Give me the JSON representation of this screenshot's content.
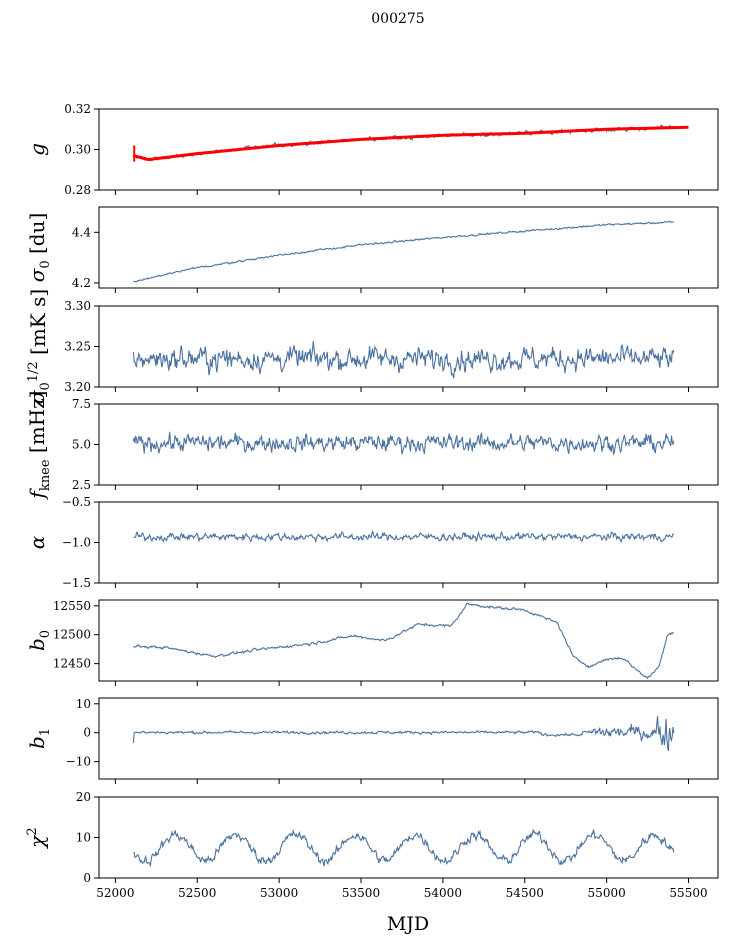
{
  "figure": {
    "title": "000275",
    "xlabel": "MJD",
    "xlim": [
      51900,
      55680
    ],
    "xticks": [
      52000,
      52500,
      53000,
      53500,
      54000,
      54500,
      55000,
      55500
    ],
    "x_start": 52110,
    "x_end": 55410,
    "colors": {
      "series": "#4c72a0",
      "fit": "#ff0000",
      "axes": "#000000"
    }
  },
  "chart_data": [
    {
      "type": "line",
      "name": "g",
      "ylabel": "g",
      "ylabel_sub": "",
      "ylim": [
        0.28,
        0.32
      ],
      "yticks": [
        "0.28",
        "0.30",
        "0.32"
      ],
      "description_points": [
        [
          52110,
          0.297
        ],
        [
          52200,
          0.295
        ],
        [
          52500,
          0.298
        ],
        [
          53000,
          0.302
        ],
        [
          53500,
          0.305
        ],
        [
          54000,
          0.307
        ],
        [
          54500,
          0.308
        ],
        [
          55000,
          0.31
        ],
        [
          55500,
          0.311
        ]
      ],
      "fit": true,
      "noise": 0.0008
    },
    {
      "type": "line",
      "name": "sigma0",
      "ylabel": "σ",
      "ylabel_sub": "0",
      "ylabel_suffix": " [du]",
      "ylim": [
        4.18,
        4.5
      ],
      "yticks": [
        "4.2",
        "4.4"
      ],
      "description_points": [
        [
          52110,
          4.205
        ],
        [
          52500,
          4.26
        ],
        [
          53000,
          4.31
        ],
        [
          53500,
          4.35
        ],
        [
          54000,
          4.38
        ],
        [
          54500,
          4.405
        ],
        [
          55000,
          4.43
        ],
        [
          55410,
          4.44
        ]
      ],
      "noise": 0.003
    },
    {
      "type": "line",
      "name": "sigma0_phys",
      "ylabel": "σ",
      "ylabel_sub": "0",
      "ylabel_suffix": " [mK s",
      "ylabel_sup": "1/2",
      "ylabel_end": "]",
      "ylim": [
        3.2,
        3.3
      ],
      "yticks": [
        "3.20",
        "3.25",
        "3.30"
      ],
      "mean": 3.235,
      "noise": 0.012
    },
    {
      "type": "line",
      "name": "fknee",
      "ylabel": "f",
      "ylabel_sub": "knee",
      "ylabel_suffix": " [mHz]",
      "ylim": [
        2.5,
        7.5
      ],
      "yticks": [
        "2.5",
        "5.0",
        "7.5"
      ],
      "mean": 5.1,
      "noise": 0.45
    },
    {
      "type": "line",
      "name": "alpha",
      "ylabel": "α",
      "ylabel_sub": "",
      "ylim": [
        -1.5,
        -0.5
      ],
      "yticks": [
        "−1.5",
        "−1.0",
        "−0.5"
      ],
      "mean": -0.93,
      "noise": 0.04
    },
    {
      "type": "line",
      "name": "b0",
      "ylabel": "b",
      "ylabel_sub": "0",
      "ylim": [
        12420,
        12560
      ],
      "yticks": [
        "12450",
        "12500",
        "12550"
      ],
      "description_points": [
        [
          52110,
          12480
        ],
        [
          52300,
          12478
        ],
        [
          52600,
          12463
        ],
        [
          52900,
          12475
        ],
        [
          53200,
          12485
        ],
        [
          53450,
          12498
        ],
        [
          53650,
          12490
        ],
        [
          53850,
          12518
        ],
        [
          54050,
          12515
        ],
        [
          54150,
          12553
        ],
        [
          54350,
          12546
        ],
        [
          54500,
          12543
        ],
        [
          54700,
          12520
        ],
        [
          54800,
          12460
        ],
        [
          54900,
          12445
        ],
        [
          55000,
          12458
        ],
        [
          55100,
          12460
        ],
        [
          55180,
          12440
        ],
        [
          55250,
          12425
        ],
        [
          55320,
          12445
        ],
        [
          55370,
          12500
        ],
        [
          55410,
          12505
        ]
      ],
      "noise": 2
    },
    {
      "type": "line",
      "name": "b1",
      "ylabel": "b",
      "ylabel_sub": "1",
      "ylim": [
        -16,
        12
      ],
      "yticks": [
        "−10",
        "0",
        "10"
      ],
      "mean": 0.1,
      "noise": 0.4
    },
    {
      "type": "line",
      "name": "chi2",
      "ylabel": "χ",
      "ylabel_sub": "",
      "ylabel_sup": "2",
      "ylim": [
        0,
        20
      ],
      "yticks": [
        "0",
        "10",
        "20"
      ],
      "mean": 7.5,
      "amplitude": 3.2,
      "period_days": 365.25,
      "noise": 1.0
    }
  ]
}
